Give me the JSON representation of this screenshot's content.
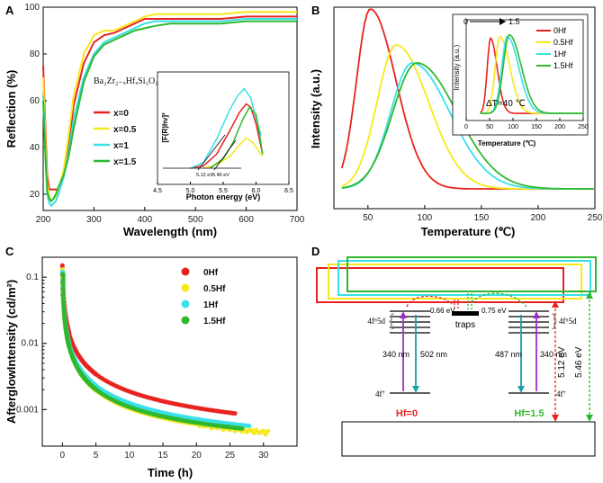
{
  "panels": {
    "A": {
      "letter": "A"
    },
    "B": {
      "letter": "B"
    },
    "C": {
      "letter": "C"
    },
    "D": {
      "letter": "D"
    }
  },
  "chart_data": [
    {
      "id": "A",
      "type": "line",
      "xlabel": "Wavelength (nm)",
      "ylabel": "Reflection (%)",
      "xlim": [
        200,
        700
      ],
      "ylim": [
        13,
        100
      ],
      "xticks": [
        200,
        300,
        400,
        500,
        600,
        700
      ],
      "yticks": [
        20,
        40,
        60,
        80,
        100
      ],
      "legend_title": "Ba₂Zr₂₋ₓHfₓSi₃O₁₂",
      "series": [
        {
          "name": "x=0",
          "color": "#e8231f",
          "x": [
            200,
            205,
            208,
            212,
            216,
            220,
            225,
            230,
            240,
            250,
            260,
            280,
            300,
            320,
            340,
            360,
            380,
            400,
            420,
            450,
            500,
            550,
            600,
            650,
            700
          ],
          "y": [
            75,
            45,
            28,
            22,
            22,
            22,
            22,
            22,
            28,
            40,
            58,
            76,
            85,
            88,
            89,
            91,
            93,
            95,
            95,
            95,
            95,
            95,
            96,
            96,
            96
          ]
        },
        {
          "name": "x=0.5",
          "color": "#f7e81a",
          "x": [
            200,
            205,
            208,
            212,
            216,
            220,
            225,
            230,
            240,
            250,
            260,
            280,
            300,
            320,
            340,
            360,
            380,
            400,
            420,
            450,
            500,
            550,
            600,
            650,
            700
          ],
          "y": [
            70,
            40,
            25,
            19,
            17,
            18,
            19,
            22,
            30,
            45,
            62,
            80,
            88,
            90,
            90,
            92,
            94,
            96,
            97,
            97,
            97,
            97,
            98,
            98,
            98
          ]
        },
        {
          "name": "x=1",
          "color": "#38e0e8",
          "x": [
            200,
            205,
            208,
            212,
            216,
            220,
            225,
            230,
            240,
            250,
            260,
            280,
            300,
            320,
            340,
            360,
            380,
            400,
            420,
            450,
            500,
            550,
            600,
            650,
            700
          ],
          "y": [
            62,
            35,
            20,
            16,
            15,
            16,
            17,
            20,
            27,
            38,
            52,
            70,
            80,
            85,
            87,
            89,
            91,
            93,
            94,
            94,
            94,
            94,
            95,
            95,
            95
          ]
        },
        {
          "name": "x=1.5",
          "color": "#2fb82f",
          "x": [
            200,
            205,
            208,
            212,
            216,
            220,
            225,
            230,
            240,
            250,
            260,
            280,
            300,
            320,
            340,
            360,
            380,
            400,
            420,
            450,
            500,
            550,
            600,
            650,
            700
          ],
          "y": [
            60,
            33,
            21,
            18,
            17,
            18,
            20,
            23,
            28,
            36,
            48,
            68,
            79,
            84,
            86,
            88,
            90,
            91,
            92,
            93,
            93,
            93,
            94,
            94,
            94
          ]
        }
      ],
      "inset": {
        "xlabel": "Photon energy (eV)",
        "ylabel": "[F(R)hν]²",
        "xlim": [
          4.5,
          6.5
        ],
        "xticks": [
          4.5,
          5.0,
          5.5,
          6.0,
          6.5
        ],
        "annotations": [
          "5.12 eV",
          "5.46 eV"
        ],
        "series": [
          {
            "color": "#e8231f",
            "x": [
              5.0,
              5.2,
              5.4,
              5.6,
              5.75,
              5.85,
              5.92,
              6.0,
              6.05,
              6.1
            ],
            "y": [
              0.0,
              0.02,
              0.12,
              0.32,
              0.48,
              0.55,
              0.52,
              0.38,
              0.25,
              0.12
            ]
          },
          {
            "color": "#f7e81a",
            "x": [
              5.2,
              5.4,
              5.6,
              5.75,
              5.85,
              5.95,
              6.05,
              6.1
            ],
            "y": [
              0.0,
              0.03,
              0.1,
              0.2,
              0.26,
              0.22,
              0.14,
              0.1
            ]
          },
          {
            "color": "#38e0e8",
            "x": [
              5.0,
              5.2,
              5.4,
              5.6,
              5.72,
              5.82,
              5.92,
              6.0,
              6.08
            ],
            "y": [
              0.0,
              0.05,
              0.25,
              0.5,
              0.62,
              0.68,
              0.6,
              0.42,
              0.28
            ]
          },
          {
            "color": "#2fb82f",
            "x": [
              5.3,
              5.5,
              5.65,
              5.8,
              5.9,
              6.0,
              6.05,
              6.1
            ],
            "y": [
              0.0,
              0.08,
              0.22,
              0.42,
              0.52,
              0.46,
              0.3,
              0.12
            ]
          }
        ]
      }
    },
    {
      "id": "B",
      "type": "line",
      "xlabel": "Temperature (℃)",
      "ylabel": "Intensity (a.u.)",
      "xlim": [
        20,
        250
      ],
      "xticks": [
        50,
        100,
        150,
        200,
        250
      ],
      "series": [
        {
          "name": "0Hf",
          "color": "#e8231f"
        },
        {
          "name": "0.5Hf",
          "color": "#f7e81a"
        },
        {
          "name": "1Hf",
          "color": "#38e0e8"
        },
        {
          "name": "1.5Hf",
          "color": "#2fb82f"
        }
      ],
      "peaks": [
        {
          "center": 52,
          "height": 1.0,
          "wl": 17,
          "wr": 32
        },
        {
          "center": 75,
          "height": 0.8,
          "wl": 24,
          "wr": 40
        },
        {
          "center": 89,
          "height": 0.7,
          "wl": 27,
          "wr": 47
        },
        {
          "center": 93,
          "height": 0.7,
          "wl": 30,
          "wr": 50
        }
      ],
      "inset": {
        "xlabel": "Temperature (℃)",
        "ylabel": "Intensity (a.u.)",
        "xlim": [
          0,
          250
        ],
        "xticks": [
          0,
          50,
          100,
          150,
          200,
          250
        ],
        "arrow_labels": [
          "0",
          "1.5"
        ],
        "annotation": "ΔT=40 ℃"
      }
    },
    {
      "id": "C",
      "type": "scatter",
      "xlabel": "Time (h)",
      "ylabel": "AfterglowIntensity (cd/m²)",
      "xlim": [
        -3,
        35
      ],
      "xticks": [
        0,
        5,
        10,
        15,
        20,
        25,
        30
      ],
      "ylim_log": [
        0.00028,
        0.2
      ],
      "yticks": [
        "0.1",
        "0.01",
        "0.001"
      ],
      "series": [
        {
          "name": "0Hf",
          "color": "#e8231f",
          "i0": 0.15,
          "a": 0.95,
          "b": 0.09,
          "tmax": 26
        },
        {
          "name": "0.5Hf",
          "color": "#f7e81a",
          "i0": 0.13,
          "a": 1.05,
          "b": 0.085,
          "tmax": 31
        },
        {
          "name": "1Hf",
          "color": "#38e0e8",
          "i0": 0.12,
          "a": 1.0,
          "b": 0.09,
          "tmax": 28
        },
        {
          "name": "1.5Hf",
          "color": "#2fb82f",
          "i0": 0.11,
          "a": 1.02,
          "b": 0.092,
          "tmax": 27
        }
      ]
    }
  ],
  "diagram_D": {
    "left_band_label": "4f⁶5d",
    "right_band_label": "4f⁶5d",
    "left_ground_label": "4f⁷",
    "right_ground_label": "4f⁷",
    "trap_label": "traps",
    "depth_left": "0.66 eV",
    "depth_right": "0.75 eV",
    "left_excite": "340 nm",
    "left_emit": "502 nm",
    "right_emit": "487 nm",
    "right_excite": "340 nm",
    "gap_left": "5.12 eV",
    "gap_right": "5.46 eV",
    "label_left": "Hf=0",
    "label_right": "Hf=1.5"
  }
}
